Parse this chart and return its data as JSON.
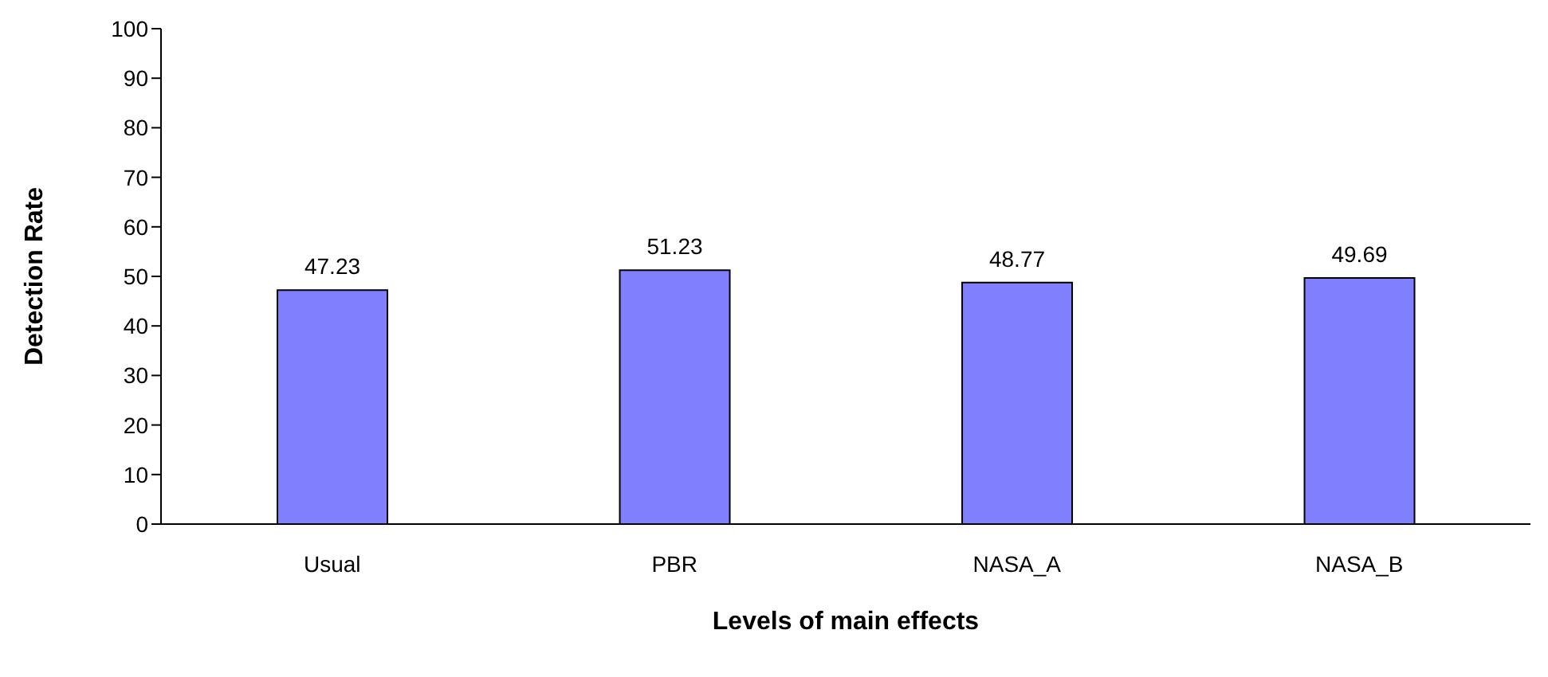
{
  "chart_data": {
    "type": "bar",
    "xlabel": "Levels of main effects",
    "ylabel": "Detection Rate",
    "categories": [
      "Usual",
      "PBR",
      "NASA_A",
      "NASA_B"
    ],
    "values": [
      47.23,
      51.23,
      48.77,
      49.69
    ],
    "color": "#8080ff",
    "ylim": [
      0,
      100
    ],
    "yticks": [
      0,
      10,
      20,
      30,
      40,
      50,
      60,
      70,
      80,
      90,
      100
    ],
    "grid": false,
    "legend": false,
    "data_labels": true
  }
}
